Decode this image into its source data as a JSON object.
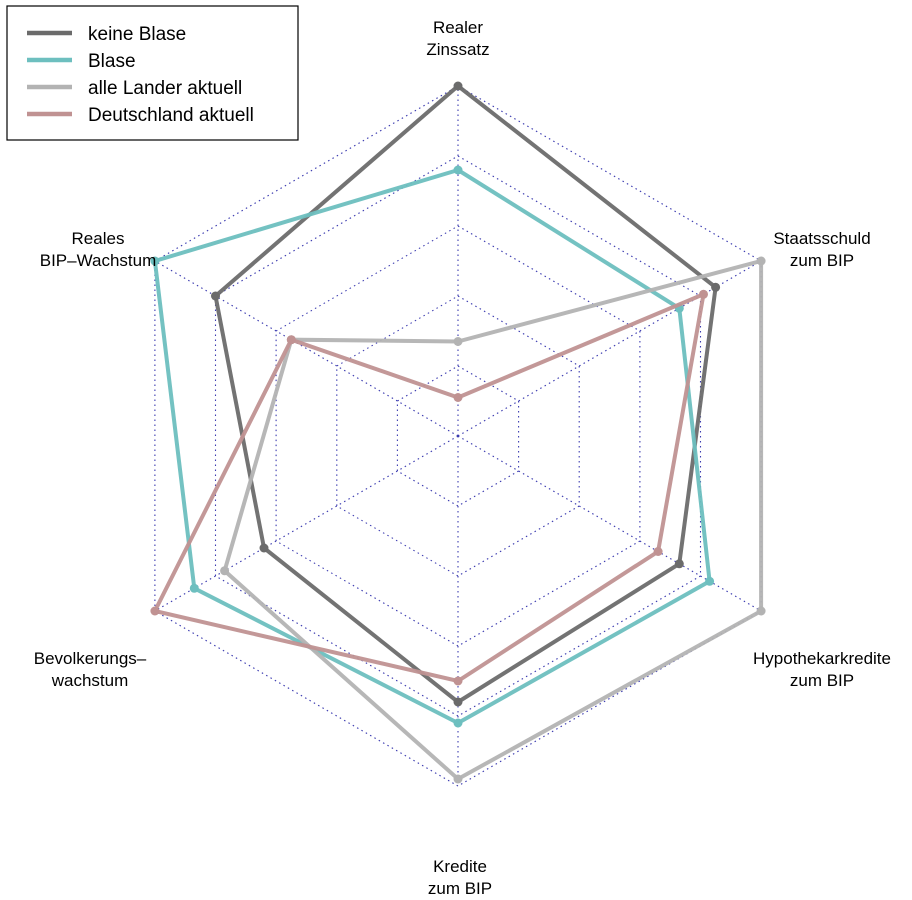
{
  "chart_data": {
    "type": "radar",
    "axes": [
      {
        "label_lines": [
          "Realer",
          "Zinssatz"
        ]
      },
      {
        "label_lines": [
          "Staatsschuld",
          "zum BIP"
        ]
      },
      {
        "label_lines": [
          "Hypothekarkredite",
          "zum BIP"
        ]
      },
      {
        "label_lines": [
          "Kredite",
          "zum BIP"
        ]
      },
      {
        "label_lines": [
          "Bevolkerungs–",
          "wachstum"
        ]
      },
      {
        "label_lines": [
          "Reales",
          "BIP–Wachstum"
        ]
      }
    ],
    "rlim": [
      0,
      1
    ],
    "grid_levels": [
      0.2,
      0.4,
      0.6,
      0.8,
      1.0
    ],
    "grid_style": "dotted",
    "legend_position": "top-left",
    "series": [
      {
        "name": "keine Blase",
        "color": "#6b6b6b",
        "values": [
          1.0,
          0.85,
          0.73,
          0.76,
          0.64,
          0.8
        ]
      },
      {
        "name": "Blase",
        "color": "#6dbfbf",
        "values": [
          0.76,
          0.73,
          0.83,
          0.82,
          0.87,
          1.0
        ]
      },
      {
        "name": "alle Lander aktuell",
        "color": "#b3b3b3",
        "values": [
          0.27,
          1.0,
          1.0,
          0.98,
          0.77,
          0.55
        ]
      },
      {
        "name": "Deutschland aktuell",
        "color": "#c09292",
        "values": [
          0.11,
          0.81,
          0.66,
          0.7,
          1.0,
          0.55
        ]
      }
    ]
  }
}
